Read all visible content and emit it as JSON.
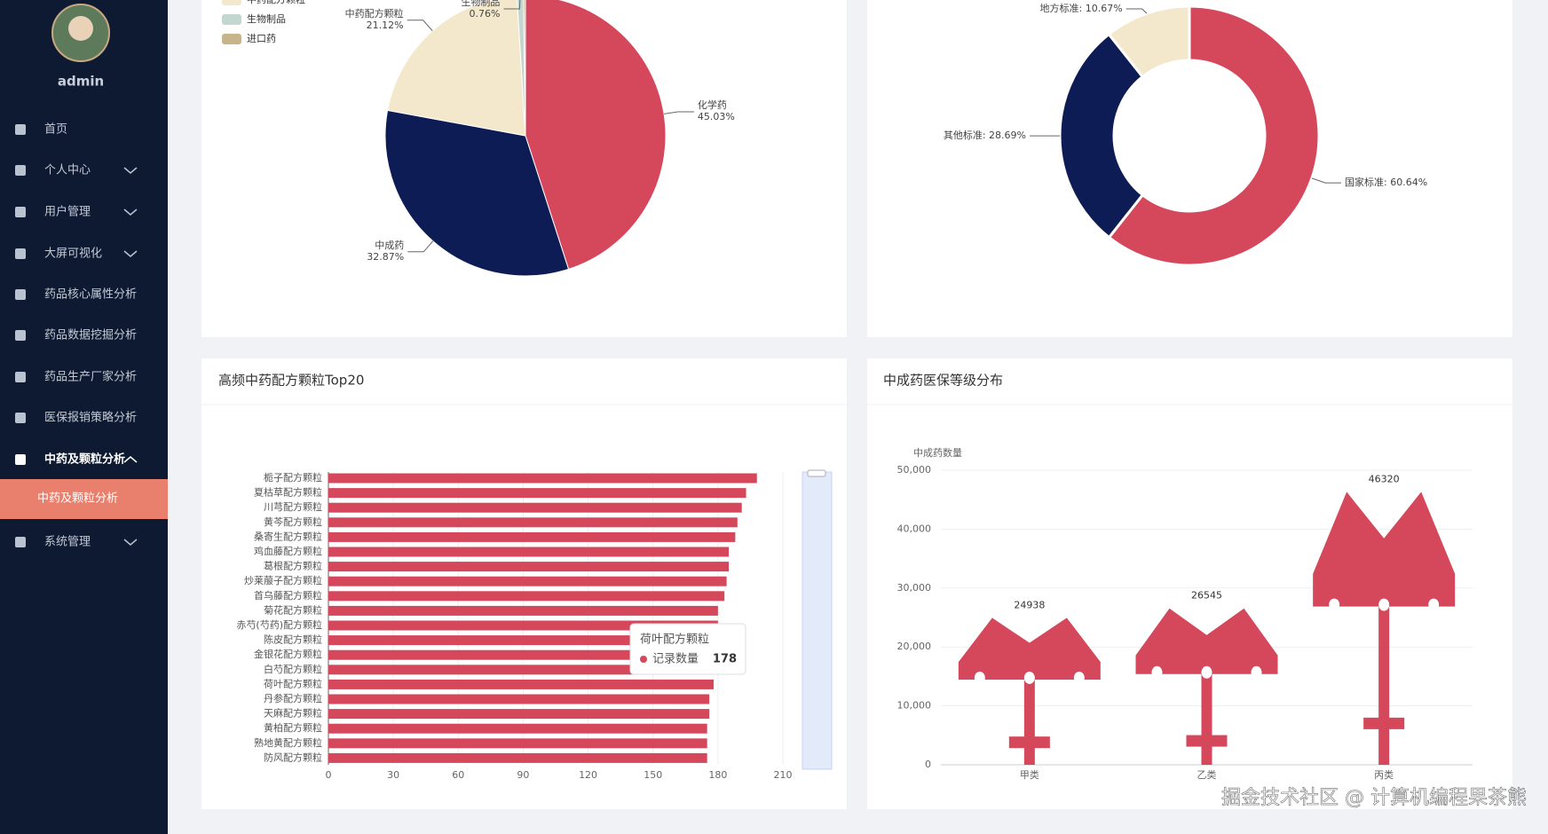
{
  "sidebar": {
    "user": "admin",
    "menu": [
      {
        "label": "首页",
        "expandable": false
      },
      {
        "label": "个人中心",
        "expandable": true
      },
      {
        "label": "用户管理",
        "expandable": true
      },
      {
        "label": "大屏可视化",
        "expandable": true
      },
      {
        "label": "药品核心属性分析",
        "expandable": false
      },
      {
        "label": "药品数据挖掘分析",
        "expandable": false
      },
      {
        "label": "药品生产厂家分析",
        "expandable": false
      },
      {
        "label": "医保报销策略分析",
        "expandable": false
      },
      {
        "label": "中药及颗粒分析",
        "expandable": true,
        "expanded": true,
        "children": [
          "中药及颗粒分析"
        ]
      },
      {
        "label": "系统管理",
        "expandable": true
      }
    ]
  },
  "chart_data": [
    {
      "type": "pie",
      "categories": [
        "化学药",
        "中成药",
        "中药配方颗粒",
        "生物制品",
        "进口药"
      ],
      "values": [
        45.03,
        32.87,
        21.12,
        0.76,
        0.22
      ],
      "value_labels": [
        "45.03%",
        "32.87%",
        "21.12%",
        "0.76%",
        null
      ],
      "colors": [
        "#d5475a",
        "#0e1c55",
        "#f3e8cc",
        "#c3d6d0",
        "#c8b48a"
      ],
      "legend": true
    },
    {
      "type": "doughnut",
      "categories": [
        "国家标准",
        "其他标准",
        "地方标准"
      ],
      "values": [
        60.64,
        28.69,
        10.67
      ],
      "value_labels": [
        "60.64%",
        "28.69%",
        "10.67%"
      ],
      "colors": [
        "#d5475a",
        "#0e1c55",
        "#f3e8cc"
      ]
    },
    {
      "type": "bar",
      "orientation": "horizontal",
      "title": "高频中药配方颗粒Top20",
      "categories": [
        "栀子配方颗粒",
        "夏枯草配方颗粒",
        "川芎配方颗粒",
        "黄芩配方颗粒",
        "桑寄生配方颗粒",
        "鸡血藤配方颗粒",
        "葛根配方颗粒",
        "炒莱菔子配方颗粒",
        "首乌藤配方颗粒",
        "菊花配方颗粒",
        "赤芍(芍药)配方颗粒",
        "陈皮配方颗粒",
        "金银花配方颗粒",
        "白芍配方颗粒",
        "荷叶配方颗粒",
        "丹参配方颗粒",
        "天麻配方颗粒",
        "黄柏配方颗粒",
        "熟地黄配方颗粒",
        "防风配方颗粒"
      ],
      "series": [
        {
          "name": "记录数量",
          "color": "#d5475a",
          "values": [
            198,
            193,
            191,
            189,
            188,
            185,
            185,
            184,
            183,
            180,
            180,
            179,
            179,
            178,
            178,
            176,
            176,
            175,
            175,
            175
          ]
        }
      ],
      "xlim": [
        0,
        210
      ],
      "xticks": [
        0,
        30,
        60,
        90,
        120,
        150,
        180,
        210
      ],
      "grid": true,
      "tooltip": {
        "title": "荷叶配方颗粒",
        "series": "记录数量",
        "value": 178
      }
    },
    {
      "type": "pictorialBar",
      "title": "中成药医保等级分布",
      "y_label": "中成药数量",
      "categories": [
        "甲类",
        "乙类",
        "丙类"
      ],
      "values": [
        24938,
        26545,
        46320
      ],
      "color": "#d5475a",
      "ylim": [
        0,
        50000
      ],
      "yticks": [
        0,
        {
          "value": 10000,
          "label": "10,000"
        },
        {
          "value": 20000,
          "label": "20,000"
        },
        {
          "value": 30000,
          "label": "30,000"
        },
        {
          "value": 40000,
          "label": "40,000"
        },
        {
          "value": 50000,
          "label": "50,000"
        }
      ],
      "grid": true
    }
  ],
  "watermark": "掘金技术社区 @ 计算机编程果茶熊"
}
